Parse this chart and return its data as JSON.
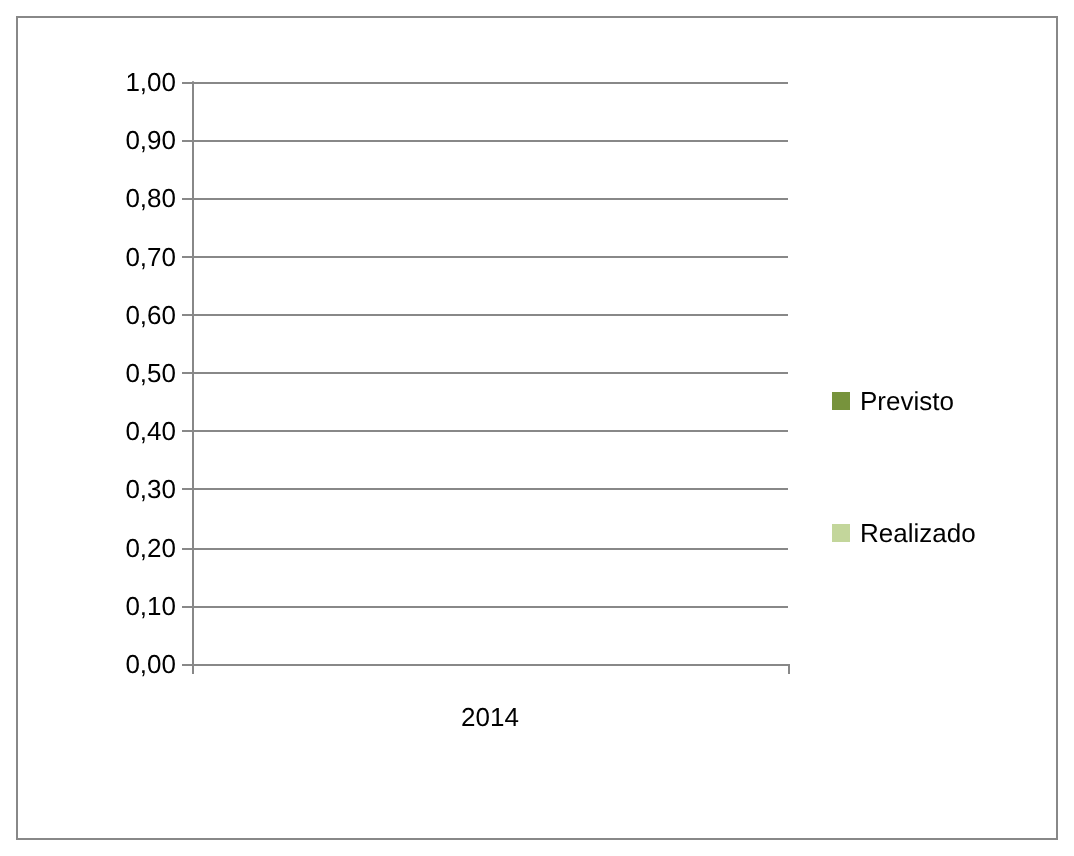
{
  "chart_data": {
    "type": "bar",
    "categories": [
      "2014"
    ],
    "series": [
      {
        "name": "Previsto",
        "color": "#77933c",
        "values": [
          0
        ]
      },
      {
        "name": "Realizado",
        "color": "#c3d69b",
        "values": [
          0
        ]
      }
    ],
    "ylim": [
      0,
      1
    ],
    "yticks": [
      {
        "value": 0,
        "label": "0,00"
      },
      {
        "value": 0.1,
        "label": "0,10"
      },
      {
        "value": 0.2,
        "label": "0,20"
      },
      {
        "value": 0.3,
        "label": "0,30"
      },
      {
        "value": 0.4,
        "label": "0,40"
      },
      {
        "value": 0.5,
        "label": "0,50"
      },
      {
        "value": 0.6,
        "label": "0,60"
      },
      {
        "value": 0.7,
        "label": "0,70"
      },
      {
        "value": 0.8,
        "label": "0,80"
      },
      {
        "value": 0.9,
        "label": "0,90"
      },
      {
        "value": 1,
        "label": "1,00"
      }
    ],
    "grid": "y",
    "legend": "right"
  }
}
